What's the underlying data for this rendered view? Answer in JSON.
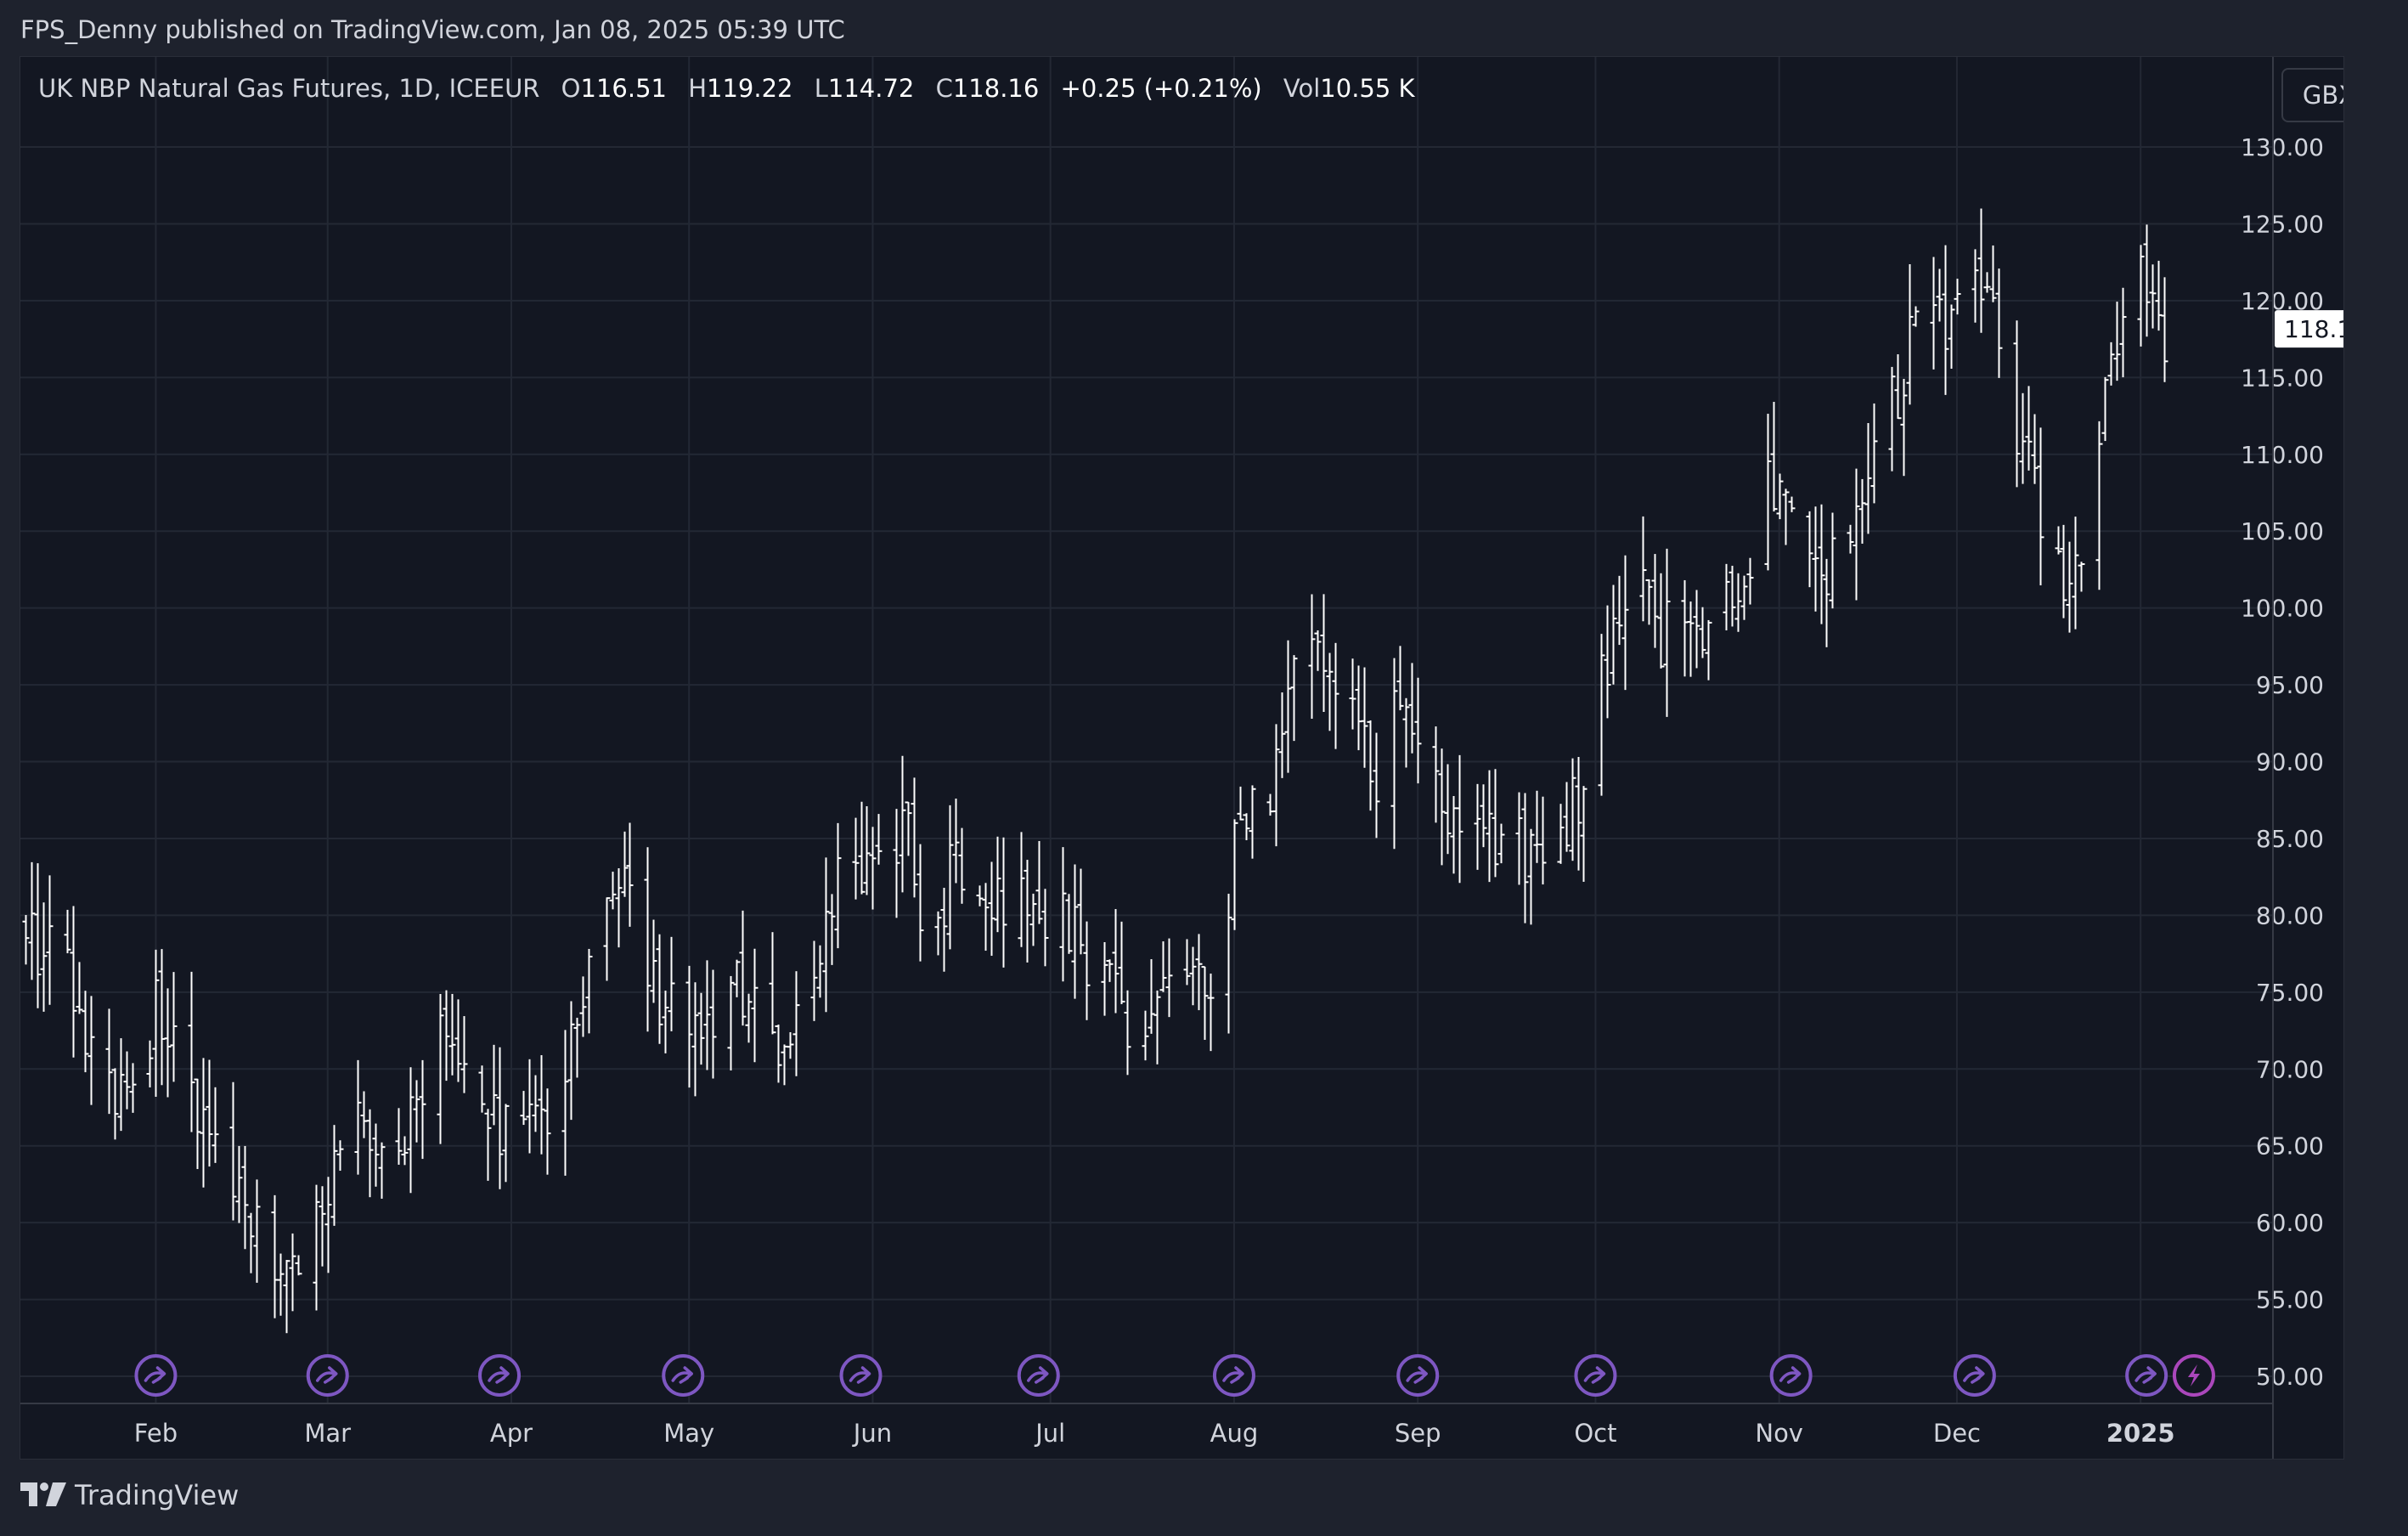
{
  "header": {
    "text": "FPS_Denny published on TradingView.com, Jan 08, 2025 05:39 UTC"
  },
  "legend": {
    "symbol": "UK NBP Natural Gas Futures, 1D, ICEEUR",
    "open_label": "O",
    "open_value": "116.51",
    "high_label": "H",
    "high_value": "119.22",
    "low_label": "L",
    "low_value": "114.72",
    "close_label": "C",
    "close_value": "118.16",
    "change": "+0.25 (+0.21%)",
    "vol_label": "Vol",
    "vol_value": "10.55 K"
  },
  "currency_button": "GBX",
  "brand": {
    "name": "TradingView"
  },
  "colors": {
    "background": "#131722",
    "frame": "#1e222d",
    "grid": "#232834",
    "bar": "#ffffff",
    "axis_text": "#d1d4dc",
    "event_marker": "#7e57c2",
    "event_marker_alt": "#ab47bc"
  },
  "chart_data": {
    "type": "ohlc-bar",
    "title": "UK NBP Natural Gas Futures, 1D, ICEEUR",
    "ylabel": "GBX",
    "ylim": [
      50,
      130
    ],
    "y_ticks": [
      "130.00",
      "125.00",
      "120.00",
      "115.00",
      "110.00",
      "105.00",
      "100.00",
      "95.00",
      "90.00",
      "85.00",
      "80.00",
      "75.00",
      "70.00",
      "65.00",
      "60.00",
      "55.00",
      "50.00"
    ],
    "x_ticks": [
      {
        "label": "Feb",
        "day": 22
      },
      {
        "label": "Mar",
        "day": 51
      },
      {
        "label": "Apr",
        "day": 82
      },
      {
        "label": "May",
        "day": 112
      },
      {
        "label": "Jun",
        "day": 143
      },
      {
        "label": "Jul",
        "day": 173
      },
      {
        "label": "Aug",
        "day": 204
      },
      {
        "label": "Sep",
        "day": 235
      },
      {
        "label": "Oct",
        "day": 265
      },
      {
        "label": "Nov",
        "day": 296
      },
      {
        "label": "Dec",
        "day": 326
      },
      {
        "label": "2025",
        "day": 357
      }
    ],
    "day_range": [
      0,
      364
    ],
    "last_price": "118.16",
    "event_markers": [
      {
        "icon": "dividend-arrow-icon",
        "day": 22
      },
      {
        "icon": "dividend-arrow-icon",
        "day": 51
      },
      {
        "icon": "dividend-arrow-icon",
        "day": 80
      },
      {
        "icon": "dividend-arrow-icon",
        "day": 111
      },
      {
        "icon": "dividend-arrow-icon",
        "day": 141
      },
      {
        "icon": "dividend-arrow-icon",
        "day": 171
      },
      {
        "icon": "dividend-arrow-icon",
        "day": 204
      },
      {
        "icon": "dividend-arrow-icon",
        "day": 235
      },
      {
        "icon": "dividend-arrow-icon",
        "day": 265
      },
      {
        "icon": "dividend-arrow-icon",
        "day": 298
      },
      {
        "icon": "dividend-arrow-icon",
        "day": 329
      },
      {
        "icon": "dividend-arrow-icon",
        "day": 358
      },
      {
        "icon": "lightning-icon",
        "day": 366
      }
    ],
    "close_path": [
      [
        0,
        80
      ],
      [
        3,
        77
      ],
      [
        6,
        79
      ],
      [
        10,
        72
      ],
      [
        13,
        68
      ],
      [
        18,
        68
      ],
      [
        22,
        74
      ],
      [
        26,
        70
      ],
      [
        30,
        67
      ],
      [
        33,
        64
      ],
      [
        37,
        61
      ],
      [
        41,
        59
      ],
      [
        45,
        57
      ],
      [
        49,
        60
      ],
      [
        53,
        66
      ],
      [
        57,
        67
      ],
      [
        61,
        65
      ],
      [
        64,
        66
      ],
      [
        68,
        71
      ],
      [
        72,
        72
      ],
      [
        75,
        69
      ],
      [
        79,
        67
      ],
      [
        83,
        64
      ],
      [
        87,
        67
      ],
      [
        91,
        71
      ],
      [
        95,
        76
      ],
      [
        99,
        80
      ],
      [
        101,
        84
      ],
      [
        104,
        78
      ],
      [
        107,
        75
      ],
      [
        110,
        73
      ],
      [
        113,
        72
      ],
      [
        116,
        74
      ],
      [
        119,
        76
      ],
      [
        122,
        74
      ],
      [
        125,
        73
      ],
      [
        128,
        72
      ],
      [
        132,
        76
      ],
      [
        136,
        82
      ],
      [
        140,
        83
      ],
      [
        143,
        85
      ],
      [
        146,
        84
      ],
      [
        148,
        87
      ],
      [
        151,
        81
      ],
      [
        154,
        79
      ],
      [
        157,
        84
      ],
      [
        160,
        83
      ],
      [
        163,
        82
      ],
      [
        166,
        81
      ],
      [
        170,
        81
      ],
      [
        174,
        80
      ],
      [
        178,
        78
      ],
      [
        182,
        76
      ],
      [
        186,
        73
      ],
      [
        190,
        74
      ],
      [
        194,
        74
      ],
      [
        198,
        75
      ],
      [
        201,
        76
      ],
      [
        204,
        85
      ],
      [
        207,
        88
      ],
      [
        210,
        89
      ],
      [
        213,
        93
      ],
      [
        216,
        99
      ],
      [
        219,
        96
      ],
      [
        222,
        95
      ],
      [
        225,
        93
      ],
      [
        228,
        89
      ],
      [
        231,
        93
      ],
      [
        234,
        94
      ],
      [
        237,
        91
      ],
      [
        240,
        87
      ],
      [
        243,
        88
      ],
      [
        246,
        86
      ],
      [
        249,
        84
      ],
      [
        252,
        85
      ],
      [
        255,
        83
      ],
      [
        258,
        86
      ],
      [
        261,
        87
      ],
      [
        264,
        90
      ],
      [
        267,
        97
      ],
      [
        270,
        99
      ],
      [
        273,
        101
      ],
      [
        276,
        98
      ],
      [
        279,
        99
      ],
      [
        282,
        98
      ],
      [
        285,
        98
      ],
      [
        288,
        101
      ],
      [
        291,
        103
      ],
      [
        294,
        108
      ],
      [
        297,
        106
      ],
      [
        300,
        104
      ],
      [
        303,
        103
      ],
      [
        306,
        102
      ],
      [
        309,
        106
      ],
      [
        312,
        110
      ],
      [
        315,
        113
      ],
      [
        318,
        117
      ],
      [
        321,
        120
      ],
      [
        324,
        118
      ],
      [
        327,
        119
      ],
      [
        330,
        121
      ],
      [
        333,
        117
      ],
      [
        336,
        112
      ],
      [
        339,
        108
      ],
      [
        342,
        103
      ],
      [
        344,
        100
      ],
      [
        346,
        102
      ],
      [
        348,
        106
      ],
      [
        350,
        112
      ],
      [
        352,
        116
      ],
      [
        354,
        120
      ],
      [
        356,
        124
      ],
      [
        358,
        122
      ],
      [
        360,
        117
      ],
      [
        362,
        118.16
      ]
    ],
    "volatility": 4.5
  }
}
